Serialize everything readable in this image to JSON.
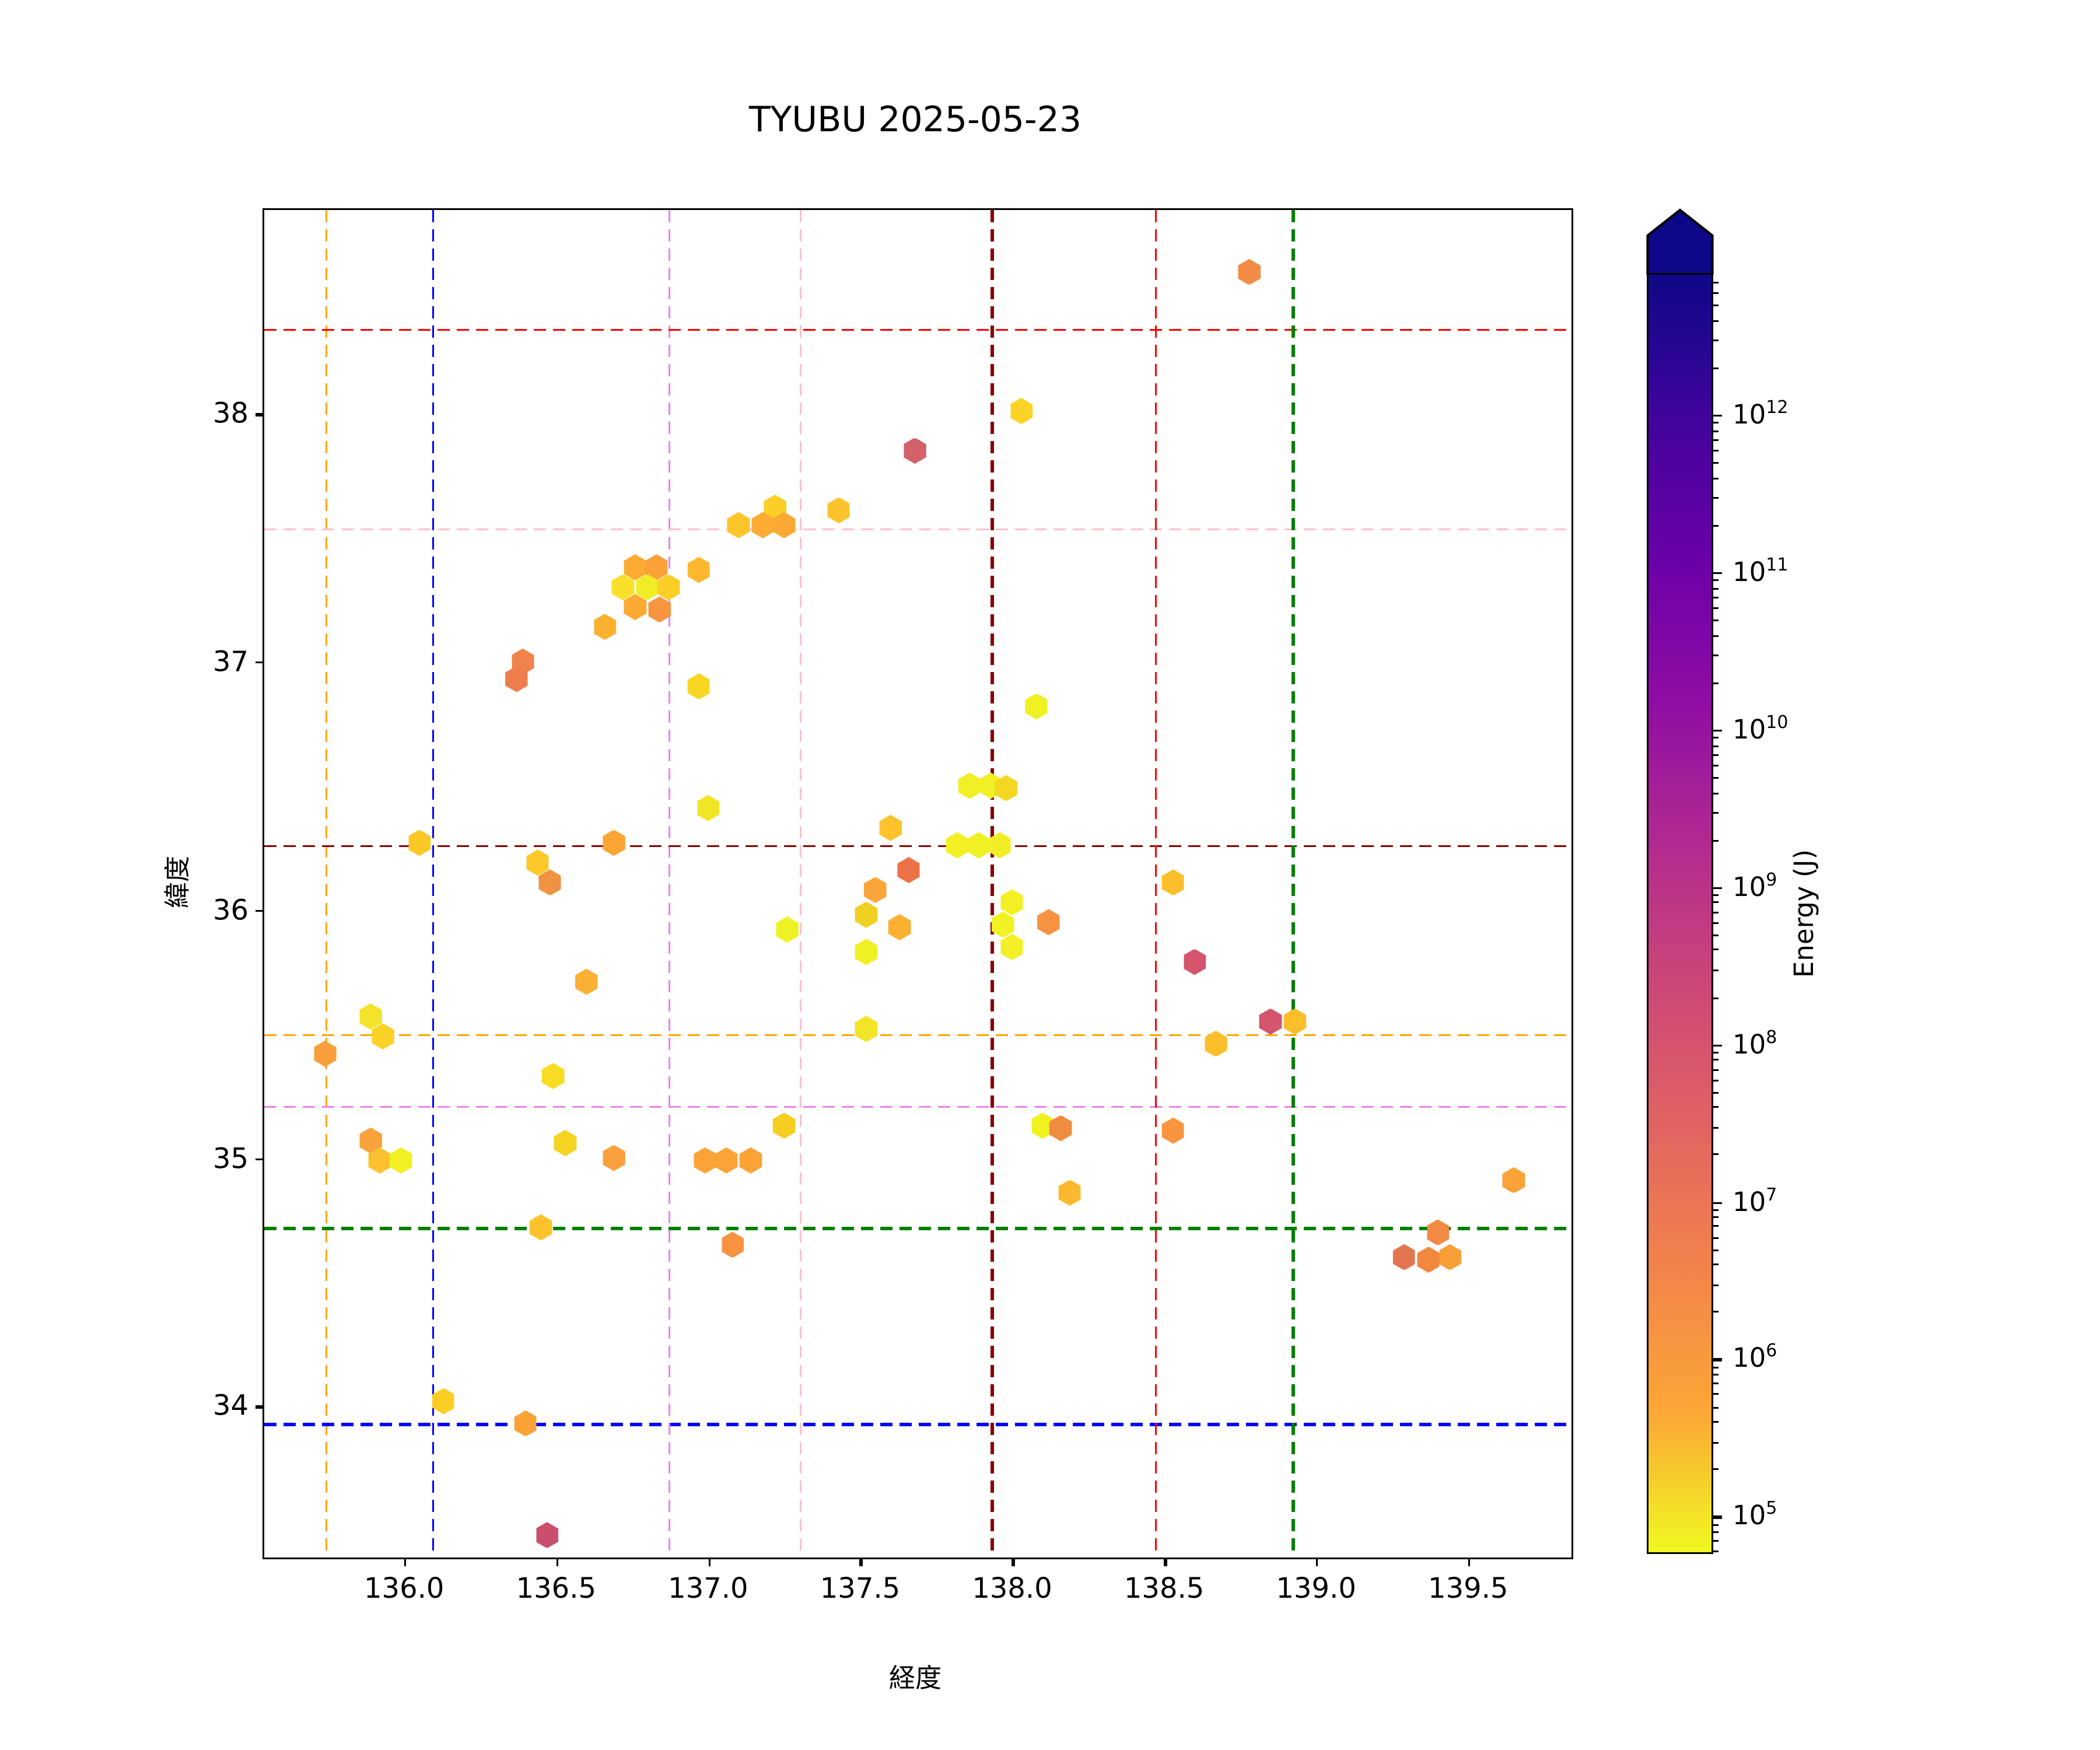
{
  "title": "TYUBU 2025-05-23",
  "axes": {
    "xlabel": "経度",
    "ylabel": "緯度",
    "xlim": [
      135.54,
      139.84
    ],
    "ylim": [
      33.39,
      38.82
    ],
    "x_ticks": [
      {
        "value": 136.0,
        "label": "136.0"
      },
      {
        "value": 136.5,
        "label": "136.5"
      },
      {
        "value": 137.0,
        "label": "137.0"
      },
      {
        "value": 137.5,
        "label": "137.5"
      },
      {
        "value": 138.0,
        "label": "138.0"
      },
      {
        "value": 138.5,
        "label": "138.5"
      },
      {
        "value": 139.0,
        "label": "139.0"
      },
      {
        "value": 139.5,
        "label": "139.5"
      }
    ],
    "y_ticks": [
      {
        "value": 34,
        "label": "34"
      },
      {
        "value": 35,
        "label": "35"
      },
      {
        "value": 36,
        "label": "36"
      },
      {
        "value": 37,
        "label": "37"
      },
      {
        "value": 38,
        "label": "38"
      }
    ]
  },
  "colorbar": {
    "label": "Energy (J)",
    "tick_exponents": [
      12,
      11,
      10,
      9,
      8,
      7,
      6,
      5
    ],
    "log_range_top_to_bottom": [
      12.9,
      4.76
    ],
    "arrow_color": "#0d0887",
    "gradient_top_to_bottom": [
      "#0d0887",
      "#41049d",
      "#6a00a8",
      "#8f0da4",
      "#b12a90",
      "#cc4778",
      "#e16462",
      "#f2844b",
      "#fca636",
      "#f0f921"
    ]
  },
  "crosshairs": [
    {
      "name": "orange",
      "color": "#ffa500",
      "lon": 135.74,
      "lat": 35.5
    },
    {
      "name": "blue",
      "color": "#0000ff",
      "lon": 136.09,
      "lat": 33.93
    },
    {
      "name": "violet",
      "color": "#ee82ee",
      "lon": 136.87,
      "lat": 35.21
    },
    {
      "name": "pink",
      "color": "#ffc0cb",
      "lon": 137.3,
      "lat": 37.54
    },
    {
      "name": "darkred",
      "color": "#8b0000",
      "lon": 137.93,
      "lat": 36.26
    },
    {
      "name": "red",
      "color": "#ff0000",
      "lon": 138.47,
      "lat": 38.34
    },
    {
      "name": "green",
      "color": "#008000",
      "lon": 138.92,
      "lat": 34.72
    }
  ],
  "chart_data": {
    "type": "scatter",
    "marker": "hexagon",
    "xlabel": "経度 (longitude)",
    "ylabel": "緯度 (latitude)",
    "color_encodes": "Energy (J), log scale, plasma_r colormap",
    "columns": [
      "lon",
      "lat",
      "color",
      "energy_j_approx"
    ],
    "points": [
      [
        136.76,
        37.38,
        "#fcab32",
        3000000.0
      ],
      [
        136.83,
        37.38,
        "#faa238",
        4000000.0
      ],
      [
        136.72,
        37.3,
        "#f8e02b",
        200000.0
      ],
      [
        136.8,
        37.3,
        "#f0ed27",
        100000.0
      ],
      [
        136.87,
        37.3,
        "#fbcf26",
        800000.0
      ],
      [
        136.76,
        37.22,
        "#fcaa33",
        3000000.0
      ],
      [
        136.84,
        37.21,
        "#f79541",
        8000000.0
      ],
      [
        136.97,
        37.37,
        "#fcb82e",
        1500000.0
      ],
      [
        136.66,
        37.14,
        "#fcb030",
        2000000.0
      ],
      [
        136.39,
        37.0,
        "#f0834b",
        15000000.0
      ],
      [
        136.37,
        36.93,
        "#ee7d4d",
        30000000.0
      ],
      [
        138.03,
        38.01,
        "#fad324",
        400000.0
      ],
      [
        137.68,
        37.85,
        "#d4606a",
        500000000.0
      ],
      [
        137.22,
        37.62,
        "#fbcf27",
        800000.0
      ],
      [
        137.43,
        37.61,
        "#fcc32c",
        800000.0
      ],
      [
        137.1,
        37.55,
        "#fcc62a",
        700000.0
      ],
      [
        137.18,
        37.55,
        "#fcab33",
        3000000.0
      ],
      [
        137.25,
        37.55,
        "#fca835",
        3500000.0
      ],
      [
        138.78,
        38.57,
        "#f28c44",
        15000000.0
      ],
      [
        136.05,
        36.27,
        "#fcc828",
        600000.0
      ],
      [
        136.69,
        36.27,
        "#faa534",
        4000000.0
      ],
      [
        136.44,
        36.19,
        "#fcc82a",
        600000.0
      ],
      [
        136.48,
        36.11,
        "#f09242",
        12000000.0
      ],
      [
        136.6,
        35.71,
        "#fbb136",
        2000000.0
      ],
      [
        135.89,
        35.57,
        "#f3e32a",
        200000.0
      ],
      [
        135.93,
        35.49,
        "#fbd227",
        500000.0
      ],
      [
        135.74,
        35.42,
        "#f9a03c",
        5000000.0
      ],
      [
        136.49,
        35.33,
        "#f8dd24",
        250000.0
      ],
      [
        136.97,
        36.9,
        "#f8d723",
        350000.0
      ],
      [
        137.0,
        36.41,
        "#f2e526",
        180000.0
      ],
      [
        138.08,
        36.82,
        "#eef223",
        100000.0
      ],
      [
        137.86,
        36.5,
        "#f1ef26",
        110000.0
      ],
      [
        137.93,
        36.5,
        "#f1ef26",
        110000.0
      ],
      [
        137.98,
        36.49,
        "#f4d722",
        350000.0
      ],
      [
        137.6,
        36.33,
        "#fcc32c",
        800000.0
      ],
      [
        137.82,
        36.26,
        "#f3ef25",
        110000.0
      ],
      [
        137.89,
        36.26,
        "#f1ef26",
        110000.0
      ],
      [
        137.96,
        36.26,
        "#f2ee26",
        120000.0
      ],
      [
        137.66,
        36.16,
        "#ec7248",
        40000000.0
      ],
      [
        137.55,
        36.08,
        "#faa63a",
        3500000.0
      ],
      [
        137.52,
        35.98,
        "#f1d024",
        450000.0
      ],
      [
        137.26,
        35.92,
        "#eef223",
        100000.0
      ],
      [
        137.63,
        35.93,
        "#fbb032",
        2000000.0
      ],
      [
        137.52,
        35.83,
        "#f0f123",
        100000.0
      ],
      [
        138.0,
        36.03,
        "#f3f123",
        100000.0
      ],
      [
        137.97,
        35.94,
        "#f1f223",
        100000.0
      ],
      [
        138.0,
        35.85,
        "#f3f025",
        100000.0
      ],
      [
        138.12,
        35.95,
        "#f59342",
        9000000.0
      ],
      [
        137.52,
        35.52,
        "#f2e426",
        180000.0
      ],
      [
        137.25,
        35.13,
        "#f6ce22",
        500000.0
      ],
      [
        138.1,
        35.13,
        "#f0f21f",
        100000.0
      ],
      [
        138.16,
        35.12,
        "#f08c42",
        14000000.0
      ],
      [
        138.53,
        36.11,
        "#fcbe2b",
        1200000.0
      ],
      [
        138.6,
        35.79,
        "#d4556c",
        800000000.0
      ],
      [
        138.85,
        35.55,
        "#d4556c",
        800000000.0
      ],
      [
        138.93,
        35.55,
        "#fcbe2b",
        1200000.0
      ],
      [
        138.67,
        35.46,
        "#fcbe2b",
        1200000.0
      ],
      [
        138.53,
        35.11,
        "#f9953f",
        7000000.0
      ],
      [
        135.89,
        35.07,
        "#faa23c",
        4000000.0
      ],
      [
        135.92,
        34.99,
        "#fbc02e",
        1100000.0
      ],
      [
        135.99,
        34.99,
        "#f2ef22",
        110000.0
      ],
      [
        136.53,
        35.06,
        "#f5d322",
        380000.0
      ],
      [
        136.69,
        35.0,
        "#faa03c",
        4500000.0
      ],
      [
        136.99,
        34.99,
        "#fba337",
        4000000.0
      ],
      [
        137.06,
        34.99,
        "#fba337",
        4000000.0
      ],
      [
        137.14,
        34.99,
        "#fba337",
        4000000.0
      ],
      [
        136.45,
        34.72,
        "#fcc32c",
        800000.0
      ],
      [
        136.13,
        34.02,
        "#fcce24",
        550000.0
      ],
      [
        136.4,
        33.93,
        "#fba337",
        4000000.0
      ],
      [
        136.47,
        33.48,
        "#c94f6d",
        1500000000.0
      ],
      [
        138.19,
        34.86,
        "#fcb930",
        1500000.0
      ],
      [
        137.08,
        34.65,
        "#f89440",
        8000000.0
      ],
      [
        139.65,
        34.91,
        "#fba238",
        4000000.0
      ],
      [
        139.4,
        34.7,
        "#f08a44",
        15000000.0
      ],
      [
        139.29,
        34.6,
        "#e2754f",
        80000000.0
      ],
      [
        139.37,
        34.59,
        "#f2873f",
        13000000.0
      ],
      [
        139.44,
        34.6,
        "#f99f38",
        5000000.0
      ]
    ]
  }
}
